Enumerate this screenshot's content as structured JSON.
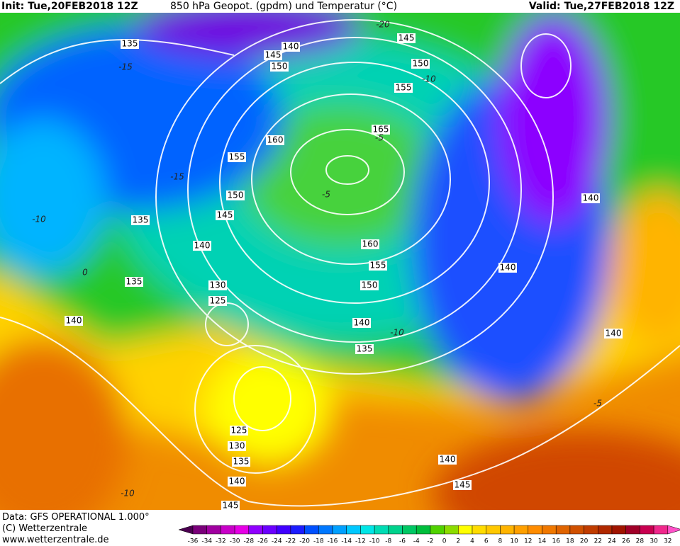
{
  "header": {
    "init": "Init: Tue,20FEB2018 12Z",
    "title": "850 hPa Geopot. (gpdm) und Temperatur (°C)",
    "valid": "Valid: Tue,27FEB2018 12Z"
  },
  "map": {
    "contour_labels": [
      135,
      145,
      140,
      145,
      150,
      150,
      155,
      165,
      160,
      155,
      150,
      145,
      135,
      140,
      160,
      155,
      150,
      140,
      135,
      130,
      125,
      135,
      140,
      140,
      140,
      140,
      125,
      130,
      135,
      140,
      145,
      140,
      145
    ],
    "temperature_labels": [
      -15,
      -15,
      -10,
      -5,
      -5,
      -20,
      -10,
      -10,
      0,
      -5,
      -10
    ]
  },
  "footer": {
    "source": "Data: GFS OPERATIONAL 1.000°",
    "copyright": "(C) Wetterzentrale",
    "url": "www.wetterzentrale.de"
  },
  "colorbar": {
    "labels": [
      -36,
      -34,
      -32,
      -30,
      -28,
      -26,
      -24,
      -22,
      -20,
      -18,
      -16,
      -14,
      -12,
      -10,
      -8,
      -6,
      -4,
      -2,
      0,
      2,
      4,
      6,
      8,
      10,
      12,
      14,
      16,
      18,
      20,
      22,
      24,
      26,
      28,
      30,
      32
    ],
    "colors": [
      "#4b0050",
      "#7a007a",
      "#a000a0",
      "#c800c8",
      "#e600e6",
      "#9000ff",
      "#6a00ff",
      "#4000ff",
      "#1c1cff",
      "#0050ff",
      "#0078ff",
      "#00a0ff",
      "#00c8ff",
      "#00e6e6",
      "#00dcb4",
      "#00d28c",
      "#00c864",
      "#00be3c",
      "#50d200",
      "#8cdc00",
      "#ffff00",
      "#ffdc00",
      "#ffc800",
      "#ffb400",
      "#ffa000",
      "#ff8c00",
      "#f07800",
      "#e06400",
      "#d05000",
      "#c03c00",
      "#b02800",
      "#a01400",
      "#a00028",
      "#c80050",
      "#f0288c",
      "#ff50c8"
    ]
  }
}
